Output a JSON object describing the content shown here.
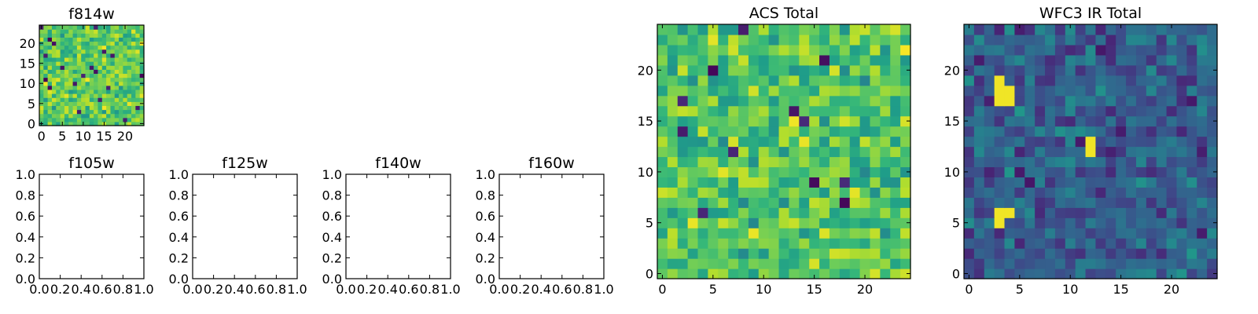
{
  "figure": {
    "background": "#ffffff",
    "colormap": "viridis"
  },
  "chart_data": [
    {
      "id": "f814w",
      "type": "heatmap",
      "title": "f814w",
      "grid": [
        25,
        25
      ],
      "seed": 11,
      "value_range": [
        0.5,
        1.0
      ],
      "low_outliers": 20,
      "bright_spots": [],
      "xticks": [
        "0",
        "5",
        "10",
        "15",
        "20"
      ],
      "yticks": [
        "0",
        "5",
        "10",
        "15",
        "20"
      ],
      "xlim": [
        -0.5,
        24.5
      ],
      "ylim": [
        -0.5,
        24.5
      ]
    },
    {
      "id": "f105w",
      "type": "empty",
      "title": "f105w",
      "xticks": [
        "0.0",
        "0.2",
        "0.4",
        "0.6",
        "0.8",
        "1.0"
      ],
      "yticks": [
        "0.0",
        "0.2",
        "0.4",
        "0.6",
        "0.8",
        "1.0"
      ],
      "xlim": [
        0,
        1
      ],
      "ylim": [
        0,
        1
      ]
    },
    {
      "id": "f125w",
      "type": "empty",
      "title": "f125w",
      "xticks": [
        "0.0",
        "0.2",
        "0.4",
        "0.6",
        "0.8",
        "1.0"
      ],
      "yticks": [
        "0.0",
        "0.2",
        "0.4",
        "0.6",
        "0.8",
        "1.0"
      ],
      "xlim": [
        0,
        1
      ],
      "ylim": [
        0,
        1
      ]
    },
    {
      "id": "f140w",
      "type": "empty",
      "title": "f140w",
      "xticks": [
        "0.0",
        "0.2",
        "0.4",
        "0.6",
        "0.8",
        "1.0"
      ],
      "yticks": [
        "0.0",
        "0.2",
        "0.4",
        "0.6",
        "0.8",
        "1.0"
      ],
      "xlim": [
        0,
        1
      ],
      "ylim": [
        0,
        1
      ]
    },
    {
      "id": "f160w",
      "type": "empty",
      "title": "f160w",
      "xticks": [
        "0.0",
        "0.2",
        "0.4",
        "0.6",
        "0.8",
        "1.0"
      ],
      "yticks": [
        "0.0",
        "0.2",
        "0.4",
        "0.6",
        "0.8",
        "1.0"
      ],
      "xlim": [
        0,
        1
      ],
      "ylim": [
        0,
        1
      ]
    },
    {
      "id": "acs",
      "type": "heatmap",
      "title": "ACS Total",
      "grid": [
        25,
        25
      ],
      "seed": 29,
      "value_range": [
        0.45,
        1.0
      ],
      "low_outliers": 12,
      "bright_spots": [],
      "xticks": [
        "0",
        "5",
        "10",
        "15",
        "20"
      ],
      "yticks": [
        "0",
        "5",
        "10",
        "15",
        "20"
      ],
      "xlim": [
        -0.5,
        24.5
      ],
      "ylim": [
        -0.5,
        24.5
      ]
    },
    {
      "id": "wfc3",
      "type": "heatmap",
      "title": "WFC3 IR Total",
      "grid": [
        25,
        25
      ],
      "seed": 47,
      "value_range": [
        0.05,
        0.55
      ],
      "low_outliers": 0,
      "bright_spots": [
        [
          3,
          18
        ],
        [
          4,
          18
        ],
        [
          3,
          17
        ],
        [
          4,
          17
        ],
        [
          3,
          19
        ],
        [
          12,
          12
        ],
        [
          12,
          13
        ],
        [
          3,
          6
        ],
        [
          3,
          5
        ],
        [
          4,
          6
        ]
      ],
      "xticks": [
        "0",
        "5",
        "10",
        "15",
        "20"
      ],
      "yticks": [
        "0",
        "5",
        "10",
        "15",
        "20"
      ],
      "xlim": [
        -0.5,
        24.5
      ],
      "ylim": [
        -0.5,
        24.5
      ]
    }
  ]
}
